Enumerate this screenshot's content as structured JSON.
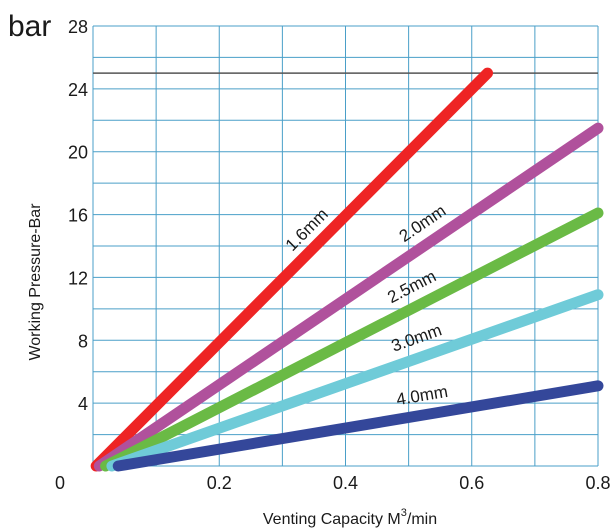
{
  "chart_data": {
    "type": "line",
    "title": "",
    "unit_label": "bar",
    "xlabel": {
      "prefix": "Venting  Capacity  M",
      "sup": "3",
      "suffix": "/min"
    },
    "ylabel": "Working Pressure-Bar",
    "xlim": [
      0,
      0.8
    ],
    "ylim": [
      0,
      28
    ],
    "x_ticks": [
      "0",
      "0.2",
      "0.4",
      "0.6",
      "0.8"
    ],
    "x_tick_values": [
      0,
      0.2,
      0.4,
      0.6,
      0.8
    ],
    "y_ticks": [
      "4",
      "8",
      "12",
      "16",
      "20",
      "24",
      "28"
    ],
    "y_tick_values": [
      4,
      8,
      12,
      16,
      20,
      24,
      28
    ],
    "x_grid_step": 0.1,
    "y_grid_step": 2,
    "grid": true,
    "grid_color": "#4a9fc8",
    "reference_line": {
      "y": 25,
      "color": "#555555"
    },
    "series": [
      {
        "name": "1.6mm",
        "color": "#ee2424",
        "x": [
          0.005,
          0.625
        ],
        "y": [
          0,
          25
        ]
      },
      {
        "name": "2.0mm",
        "color": "#b0519c",
        "x": [
          0.01,
          0.8
        ],
        "y": [
          0,
          21.5
        ]
      },
      {
        "name": "2.5mm",
        "color": "#6aba45",
        "x": [
          0.02,
          0.8
        ],
        "y": [
          0,
          16.1
        ]
      },
      {
        "name": "3.0mm",
        "color": "#6fcbd8",
        "x": [
          0.03,
          0.8
        ],
        "y": [
          0,
          10.9
        ]
      },
      {
        "name": "4.0mm",
        "color": "#34479a",
        "x": [
          0.04,
          0.8
        ],
        "y": [
          0,
          5.1
        ]
      }
    ]
  }
}
